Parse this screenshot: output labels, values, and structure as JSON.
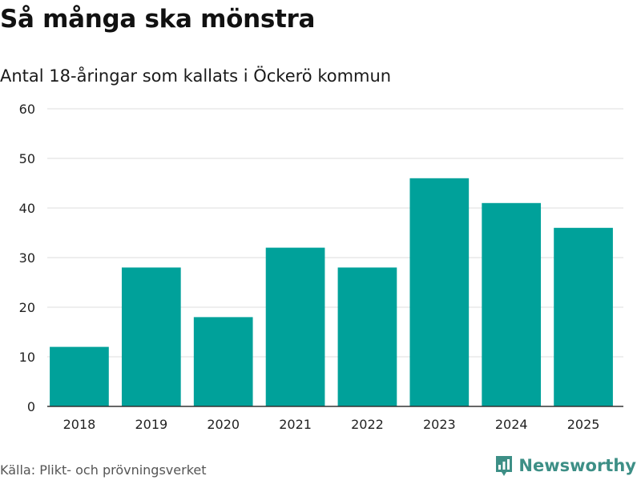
{
  "header": {
    "title": "Så många ska mönstra",
    "subtitle": "Antal 18-åringar som kallats i Öckerö kommun"
  },
  "footer": {
    "source": "Källa: Plikt- och prövningsverket",
    "brand": "Newsworthy"
  },
  "colors": {
    "bar": "#00a19a",
    "grid": "#dddddd",
    "axis": "#333333",
    "brand": "#3d8f86"
  },
  "chart_data": {
    "type": "bar",
    "title": "Så många ska mönstra",
    "subtitle": "Antal 18-åringar som kallats i Öckerö kommun",
    "xlabel": "",
    "ylabel": "",
    "categories": [
      "2018",
      "2019",
      "2020",
      "2021",
      "2022",
      "2023",
      "2024",
      "2025"
    ],
    "values": [
      12,
      28,
      18,
      32,
      28,
      46,
      41,
      36
    ],
    "ylim": [
      0,
      60
    ],
    "yticks": [
      0,
      10,
      20,
      30,
      40,
      50,
      60
    ],
    "grid": true,
    "legend": "none"
  }
}
